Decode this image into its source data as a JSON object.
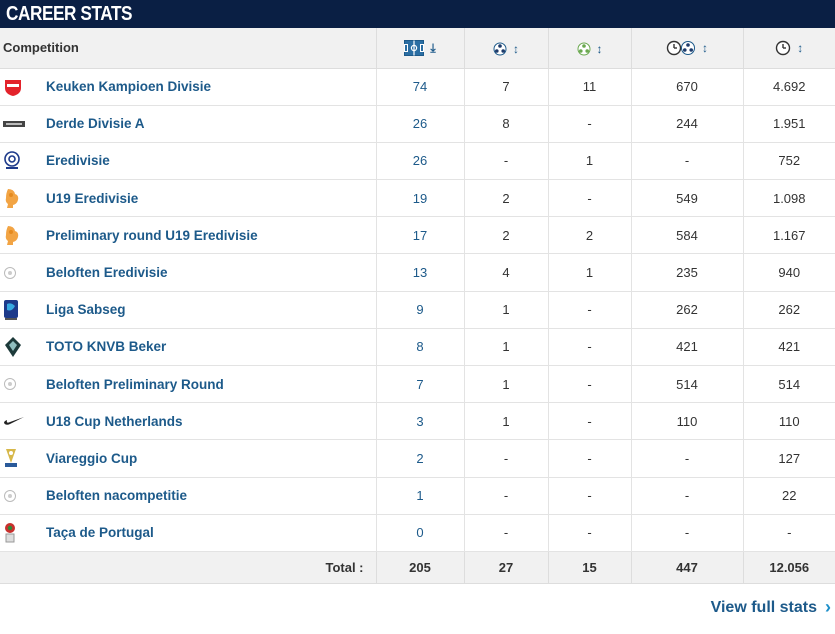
{
  "header": {
    "title": "CAREER STATS"
  },
  "table": {
    "col_competition": "Competition",
    "header_icons": [
      "appearances-icon",
      "goals-icon",
      "assists-icon",
      "minutes-per-goal-icon",
      "minutes-icon"
    ],
    "rows": [
      {
        "competition": "Keuken Kampioen Divisie",
        "apps": "74",
        "goals": "7",
        "assists": "11",
        "min_per_goal": "670",
        "minutes": "4.692",
        "logo": "kkd-logo"
      },
      {
        "competition": "Derde Divisie A",
        "apps": "26",
        "goals": "8",
        "assists": "-",
        "min_per_goal": "244",
        "minutes": "1.951",
        "logo": "derde-divisie-logo"
      },
      {
        "competition": "Eredivisie",
        "apps": "26",
        "goals": "-",
        "assists": "1",
        "min_per_goal": "-",
        "minutes": "752",
        "logo": "eredivisie-logo"
      },
      {
        "competition": "U19 Eredivisie",
        "apps": "19",
        "goals": "2",
        "assists": "-",
        "min_per_goal": "549",
        "minutes": "1.098",
        "logo": "knvb-lion-logo"
      },
      {
        "competition": "Preliminary round U19 Eredivisie",
        "apps": "17",
        "goals": "2",
        "assists": "2",
        "min_per_goal": "584",
        "minutes": "1.167",
        "logo": "knvb-lion-logo"
      },
      {
        "competition": "Beloften Eredivisie",
        "apps": "13",
        "goals": "4",
        "assists": "1",
        "min_per_goal": "235",
        "minutes": "940",
        "logo": "generic-ball-logo"
      },
      {
        "competition": "Liga Sabseg",
        "apps": "9",
        "goals": "1",
        "assists": "-",
        "min_per_goal": "262",
        "minutes": "262",
        "logo": "liga-sabseg-logo"
      },
      {
        "competition": "TOTO KNVB Beker",
        "apps": "8",
        "goals": "1",
        "assists": "-",
        "min_per_goal": "421",
        "minutes": "421",
        "logo": "knvb-beker-logo"
      },
      {
        "competition": "Beloften Preliminary Round",
        "apps": "7",
        "goals": "1",
        "assists": "-",
        "min_per_goal": "514",
        "minutes": "514",
        "logo": "generic-ball-logo"
      },
      {
        "competition": "U18 Cup Netherlands",
        "apps": "3",
        "goals": "1",
        "assists": "-",
        "min_per_goal": "110",
        "minutes": "110",
        "logo": "nike-swoosh-logo"
      },
      {
        "competition": "Viareggio Cup",
        "apps": "2",
        "goals": "-",
        "assists": "-",
        "min_per_goal": "-",
        "minutes": "127",
        "logo": "viareggio-logo"
      },
      {
        "competition": "Beloften nacompetitie",
        "apps": "1",
        "goals": "-",
        "assists": "-",
        "min_per_goal": "-",
        "minutes": "22",
        "logo": "generic-ball-logo"
      },
      {
        "competition": "Taça de Portugal",
        "apps": "0",
        "goals": "-",
        "assists": "-",
        "min_per_goal": "-",
        "minutes": "-",
        "logo": "taca-portugal-logo"
      }
    ],
    "total": {
      "label": "Total :",
      "apps": "205",
      "goals": "27",
      "assists": "15",
      "min_per_goal": "447",
      "minutes": "12.056"
    }
  },
  "footer": {
    "view_full_label": "View full stats"
  },
  "colors": {
    "header_bg": "#0a1f44",
    "link": "#1d5a8a",
    "chevron": "#1d8fc9"
  }
}
